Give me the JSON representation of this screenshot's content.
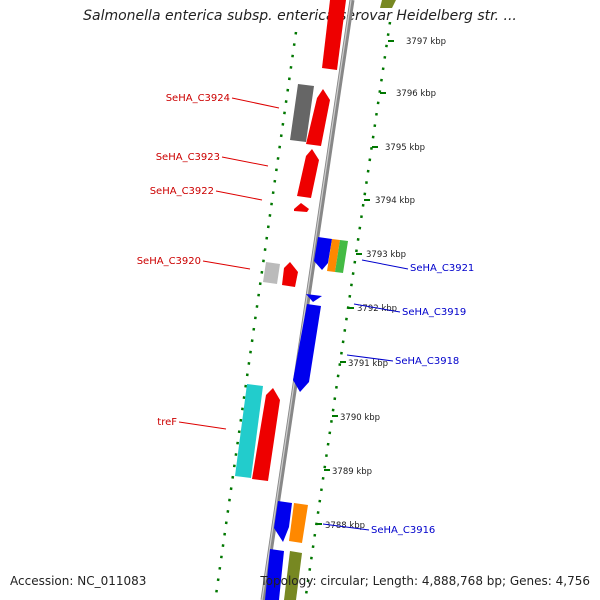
{
  "title": "Salmonella enterica subsp. enterica serovar Heidelberg str. ...",
  "accession_label": "Accession: NC_011083",
  "summary_label": "Topology: circular; Length: 4,888,768 bp; Genes: 4,756",
  "ticks": [
    "3797 kbp",
    "3796 kbp",
    "3795 kbp",
    "3794 kbp",
    "3793 kbp",
    "3792 kbp",
    "3791 kbp",
    "3790 kbp",
    "3789 kbp",
    "3788 kbp"
  ],
  "left_labels": [
    "SeHA_C3924",
    "SeHA_C3923",
    "SeHA_C3922",
    "SeHA_C3920",
    "treF"
  ],
  "right_labels": [
    "SeHA_C3921",
    "SeHA_C3919",
    "SeHA_C3918",
    "SeHA_C3916"
  ],
  "colors": {
    "forward": "#ee0000",
    "reverse": "#0000ee",
    "grey": "#666666",
    "orange": "#ff8800",
    "green": "#44bb44",
    "cyan": "#22cccc",
    "olive": "#778822",
    "tick": "#007700"
  }
}
